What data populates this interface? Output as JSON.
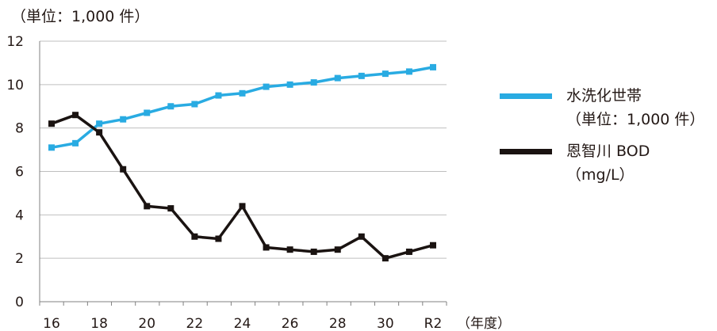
{
  "chart_data": {
    "type": "line",
    "title": "",
    "y_unit_note": "（単位：1,000 件）",
    "x_unit_note": "（年度）",
    "xlabel": "",
    "ylabel": "",
    "x": [
      "16",
      "17",
      "18",
      "19",
      "20",
      "21",
      "22",
      "23",
      "24",
      "25",
      "26",
      "27",
      "28",
      "29",
      "30",
      "31",
      "R2"
    ],
    "x_tick_labels": [
      "16",
      "18",
      "20",
      "22",
      "24",
      "26",
      "28",
      "30",
      "R2"
    ],
    "ylim": [
      0,
      12
    ],
    "y_ticks": [
      0,
      2,
      4,
      6,
      8,
      10,
      12
    ],
    "grid": "horizontal",
    "legend_position": "right",
    "series": [
      {
        "name": "水洗化世帯",
        "unit": "（単位：1,000 件）",
        "color": "#29abe2",
        "values": [
          7.1,
          7.3,
          8.2,
          8.4,
          8.7,
          9.0,
          9.1,
          9.5,
          9.6,
          9.9,
          10.0,
          10.1,
          10.3,
          10.4,
          10.5,
          10.6,
          10.8
        ]
      },
      {
        "name": "恩智川 BOD",
        "unit": "（mg/L）",
        "color": "#1a1311",
        "values": [
          8.2,
          8.6,
          7.8,
          6.1,
          4.4,
          4.3,
          3.0,
          2.9,
          4.4,
          2.5,
          2.4,
          2.3,
          2.4,
          3.0,
          2.0,
          2.3,
          2.6
        ]
      }
    ]
  }
}
